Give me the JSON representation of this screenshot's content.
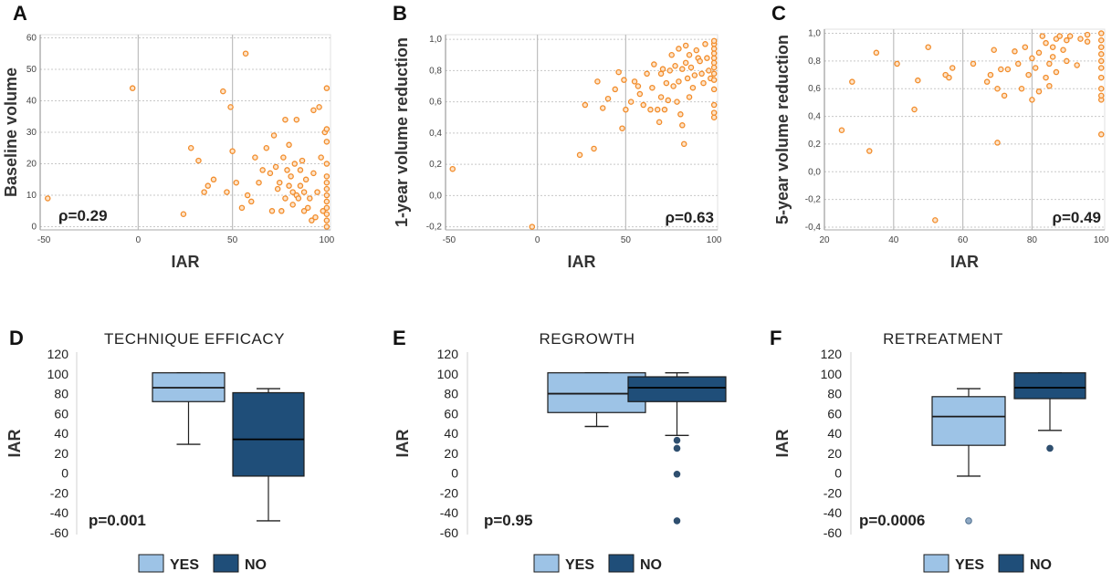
{
  "colors": {
    "point": "#f28c2a",
    "point_fill": "#fde3c8",
    "grid_major": "#bfbfbf",
    "grid_minor": "#c8c8c8",
    "yes": "#9dc3e6",
    "no": "#1f4e79",
    "outlier": "#2f4f6f",
    "whisker": "#222222"
  },
  "legend": {
    "yes": "YES",
    "no": "NO"
  },
  "chart_data": [
    {
      "panel": "A",
      "type": "scatter",
      "xlabel": "IAR",
      "ylabel": "Baseline volume",
      "xlim": [
        -52,
        102
      ],
      "ylim": [
        -1,
        61
      ],
      "xticks": [
        -50,
        0,
        50,
        100
      ],
      "xtick_labels": [
        "-50",
        "0",
        "50",
        "100"
      ],
      "xgrid": [
        0,
        50
      ],
      "yticks": [
        0,
        10,
        20,
        30,
        40,
        50,
        60
      ],
      "ytick_labels": [
        "0",
        "10",
        "20",
        "30",
        "40",
        "50",
        "60"
      ],
      "annotation": "ρ=0.29",
      "annotation_pos": "bottom-left",
      "points": [
        [
          -48,
          9
        ],
        [
          -3,
          44
        ],
        [
          24,
          4
        ],
        [
          28,
          25
        ],
        [
          32,
          21
        ],
        [
          35,
          11
        ],
        [
          37,
          13
        ],
        [
          40,
          15
        ],
        [
          45,
          43
        ],
        [
          47,
          11
        ],
        [
          49,
          38
        ],
        [
          50,
          24
        ],
        [
          52,
          14
        ],
        [
          55,
          6
        ],
        [
          57,
          55
        ],
        [
          58,
          10
        ],
        [
          60,
          8
        ],
        [
          62,
          22
        ],
        [
          64,
          14
        ],
        [
          66,
          18
        ],
        [
          68,
          25
        ],
        [
          70,
          17
        ],
        [
          71,
          5
        ],
        [
          72,
          29
        ],
        [
          73,
          19
        ],
        [
          74,
          12
        ],
        [
          75,
          14
        ],
        [
          76,
          5
        ],
        [
          77,
          22
        ],
        [
          78,
          34
        ],
        [
          78,
          9
        ],
        [
          79,
          18
        ],
        [
          80,
          13
        ],
        [
          80,
          26
        ],
        [
          81,
          16
        ],
        [
          82,
          7
        ],
        [
          82,
          11
        ],
        [
          83,
          20
        ],
        [
          84,
          34
        ],
        [
          84,
          10
        ],
        [
          85,
          9
        ],
        [
          86,
          13
        ],
        [
          86,
          18
        ],
        [
          87,
          21
        ],
        [
          88,
          11
        ],
        [
          88,
          5
        ],
        [
          89,
          15
        ],
        [
          90,
          6
        ],
        [
          91,
          9
        ],
        [
          92,
          2
        ],
        [
          93,
          17
        ],
        [
          93,
          37
        ],
        [
          94,
          3
        ],
        [
          95,
          11
        ],
        [
          96,
          38
        ],
        [
          97,
          22
        ],
        [
          98,
          5
        ],
        [
          99,
          30
        ],
        [
          100,
          0
        ],
        [
          100,
          2
        ],
        [
          100,
          4
        ],
        [
          100,
          6
        ],
        [
          100,
          8
        ],
        [
          100,
          10
        ],
        [
          100,
          12
        ],
        [
          100,
          14
        ],
        [
          100,
          16
        ],
        [
          100,
          20
        ],
        [
          100,
          27
        ],
        [
          100,
          31
        ],
        [
          100,
          44
        ]
      ]
    },
    {
      "panel": "B",
      "type": "scatter",
      "xlabel": "IAR",
      "ylabel": "1-year volume reduction",
      "xlim": [
        -52,
        102
      ],
      "ylim": [
        -0.22,
        1.03
      ],
      "xticks": [
        -50,
        0,
        50,
        100
      ],
      "xtick_labels": [
        "-50",
        "0",
        "50",
        "100"
      ],
      "xgrid": [
        0,
        50
      ],
      "yticks": [
        -0.2,
        0,
        0.2,
        0.4,
        0.6,
        0.8,
        1.0
      ],
      "ytick_labels": [
        "-0,2",
        "0,0",
        "0,2",
        "0,4",
        "0,6",
        "0,8",
        "1,0"
      ],
      "annotation": "ρ=0.63",
      "annotation_pos": "bottom-right",
      "points": [
        [
          -48,
          0.17
        ],
        [
          -3,
          -0.2
        ],
        [
          24,
          0.26
        ],
        [
          27,
          0.58
        ],
        [
          32,
          0.3
        ],
        [
          34,
          0.73
        ],
        [
          37,
          0.56
        ],
        [
          40,
          0.62
        ],
        [
          44,
          0.68
        ],
        [
          46,
          0.79
        ],
        [
          48,
          0.43
        ],
        [
          49,
          0.74
        ],
        [
          50,
          0.55
        ],
        [
          53,
          0.6
        ],
        [
          55,
          0.73
        ],
        [
          57,
          0.7
        ],
        [
          58,
          0.65
        ],
        [
          60,
          0.58
        ],
        [
          62,
          0.78
        ],
        [
          64,
          0.55
        ],
        [
          65,
          0.69
        ],
        [
          66,
          0.84
        ],
        [
          68,
          0.55
        ],
        [
          69,
          0.47
        ],
        [
          70,
          0.78
        ],
        [
          70,
          0.63
        ],
        [
          71,
          0.81
        ],
        [
          72,
          0.55
        ],
        [
          73,
          0.72
        ],
        [
          74,
          0.61
        ],
        [
          75,
          0.8
        ],
        [
          76,
          0.9
        ],
        [
          77,
          0.7
        ],
        [
          78,
          0.83
        ],
        [
          79,
          0.6
        ],
        [
          80,
          0.94
        ],
        [
          80,
          0.73
        ],
        [
          81,
          0.52
        ],
        [
          82,
          0.81
        ],
        [
          82,
          0.45
        ],
        [
          83,
          0.33
        ],
        [
          84,
          0.96
        ],
        [
          84,
          0.85
        ],
        [
          85,
          0.75
        ],
        [
          86,
          0.63
        ],
        [
          86,
          0.9
        ],
        [
          87,
          0.82
        ],
        [
          88,
          0.69
        ],
        [
          89,
          0.77
        ],
        [
          90,
          0.93
        ],
        [
          91,
          0.88
        ],
        [
          92,
          0.86
        ],
        [
          93,
          0.78
        ],
        [
          94,
          0.72
        ],
        [
          95,
          0.97
        ],
        [
          96,
          0.88
        ],
        [
          97,
          0.8
        ],
        [
          98,
          0.75
        ],
        [
          100,
          0.5
        ],
        [
          100,
          0.53
        ],
        [
          100,
          0.58
        ],
        [
          100,
          0.68
        ],
        [
          100,
          0.74
        ],
        [
          100,
          0.78
        ],
        [
          100,
          0.82
        ],
        [
          100,
          0.85
        ],
        [
          100,
          0.88
        ],
        [
          100,
          0.91
        ],
        [
          100,
          0.94
        ],
        [
          100,
          0.97
        ],
        [
          100,
          0.99
        ]
      ]
    },
    {
      "panel": "C",
      "type": "scatter",
      "xlabel": "IAR",
      "ylabel": "5-year volume reduction",
      "xlim": [
        20,
        101
      ],
      "ylim": [
        -0.42,
        1.03
      ],
      "xticks": [
        20,
        40,
        60,
        80,
        100
      ],
      "xtick_labels": [
        "20",
        "40",
        "60",
        "80",
        "100"
      ],
      "xgrid": [
        40,
        60,
        80
      ],
      "yticks": [
        -0.4,
        -0.2,
        0,
        0.2,
        0.4,
        0.6,
        0.8,
        1.0
      ],
      "ytick_labels": [
        "-0,4",
        "-0,2",
        "0,0",
        "0,2",
        "0,4",
        "0,6",
        "0,8",
        "1,0"
      ],
      "annotation": "ρ=0.49",
      "annotation_pos": "bottom-right",
      "points": [
        [
          25,
          0.3
        ],
        [
          28,
          0.65
        ],
        [
          33,
          0.15
        ],
        [
          35,
          0.86
        ],
        [
          41,
          0.78
        ],
        [
          46,
          0.45
        ],
        [
          47,
          0.66
        ],
        [
          50,
          0.9
        ],
        [
          52,
          -0.35
        ],
        [
          55,
          0.7
        ],
        [
          56,
          0.68
        ],
        [
          57,
          0.75
        ],
        [
          63,
          0.78
        ],
        [
          67,
          0.65
        ],
        [
          68,
          0.7
        ],
        [
          69,
          0.88
        ],
        [
          70,
          0.21
        ],
        [
          70,
          0.6
        ],
        [
          71,
          0.74
        ],
        [
          72,
          0.55
        ],
        [
          73,
          0.74
        ],
        [
          75,
          0.87
        ],
        [
          76,
          0.78
        ],
        [
          77,
          0.6
        ],
        [
          78,
          0.9
        ],
        [
          79,
          0.7
        ],
        [
          80,
          0.82
        ],
        [
          80,
          0.52
        ],
        [
          81,
          0.75
        ],
        [
          82,
          0.58
        ],
        [
          82,
          0.86
        ],
        [
          83,
          0.98
        ],
        [
          84,
          0.93
        ],
        [
          84,
          0.68
        ],
        [
          85,
          0.78
        ],
        [
          85,
          0.62
        ],
        [
          86,
          0.9
        ],
        [
          86,
          0.83
        ],
        [
          87,
          0.96
        ],
        [
          87,
          0.72
        ],
        [
          88,
          0.98
        ],
        [
          89,
          0.88
        ],
        [
          90,
          0.8
        ],
        [
          90,
          0.95
        ],
        [
          91,
          0.98
        ],
        [
          93,
          0.77
        ],
        [
          94,
          0.96
        ],
        [
          96,
          0.94
        ],
        [
          96,
          0.99
        ],
        [
          100,
          0.27
        ],
        [
          100,
          0.52
        ],
        [
          100,
          0.55
        ],
        [
          100,
          0.6
        ],
        [
          100,
          0.68
        ],
        [
          100,
          0.75
        ],
        [
          100,
          0.8
        ],
        [
          100,
          0.85
        ],
        [
          100,
          0.9
        ],
        [
          100,
          0.95
        ],
        [
          100,
          1.0
        ]
      ]
    },
    {
      "panel": "D",
      "type": "box",
      "title": "TECHNIQUE  EFFICACY",
      "ylabel": "IAR",
      "ylim": [
        -60,
        120
      ],
      "yticks": [
        -60,
        -40,
        -20,
        0,
        20,
        40,
        60,
        80,
        100,
        120
      ],
      "ytick_labels": [
        "-60",
        "-40",
        "-20",
        "0",
        "20",
        "40",
        "60",
        "80",
        "100",
        "120"
      ],
      "stat": "p=0.001",
      "groups": [
        {
          "name": "YES",
          "min": 29,
          "q1": 72,
          "median": 86,
          "q3": 101,
          "max": 101,
          "outliers": []
        },
        {
          "name": "NO",
          "min": -48,
          "q1": -3,
          "median": 34,
          "q3": 81,
          "max": 85,
          "outliers": []
        }
      ]
    },
    {
      "panel": "E",
      "type": "box",
      "title": "REGROWTH",
      "ylabel": "IAR",
      "ylim": [
        -60,
        120
      ],
      "yticks": [
        -60,
        -40,
        -20,
        0,
        20,
        40,
        60,
        80,
        100,
        120
      ],
      "ytick_labels": [
        "-60",
        "-40",
        "-20",
        "0",
        "20",
        "40",
        "60",
        "80",
        "100",
        "120"
      ],
      "stat": "p=0.95",
      "groups": [
        {
          "name": "YES",
          "min": 47,
          "q1": 61,
          "median": 80,
          "q3": 101,
          "max": 101,
          "outliers": []
        },
        {
          "name": "NO",
          "min": 38,
          "q1": 72,
          "median": 86,
          "q3": 97,
          "max": 101,
          "outliers": [
            33,
            25,
            -1,
            -48
          ]
        }
      ]
    },
    {
      "panel": "F",
      "type": "box",
      "title": "RETREATMENT",
      "ylabel": "IAR",
      "ylim": [
        -60,
        120
      ],
      "yticks": [
        -60,
        -40,
        -20,
        0,
        20,
        40,
        60,
        80,
        100,
        120
      ],
      "ytick_labels": [
        "-60",
        "-40",
        "-20",
        "0",
        "20",
        "40",
        "60",
        "80",
        "100",
        "120"
      ],
      "stat": "p=0.0006",
      "groups": [
        {
          "name": "YES",
          "min": -3,
          "q1": 28,
          "median": 57,
          "q3": 77,
          "max": 85,
          "outliers": [
            -48
          ]
        },
        {
          "name": "NO",
          "min": 43,
          "q1": 75,
          "median": 86,
          "q3": 101,
          "max": 101,
          "outliers": [
            25
          ]
        }
      ]
    }
  ]
}
